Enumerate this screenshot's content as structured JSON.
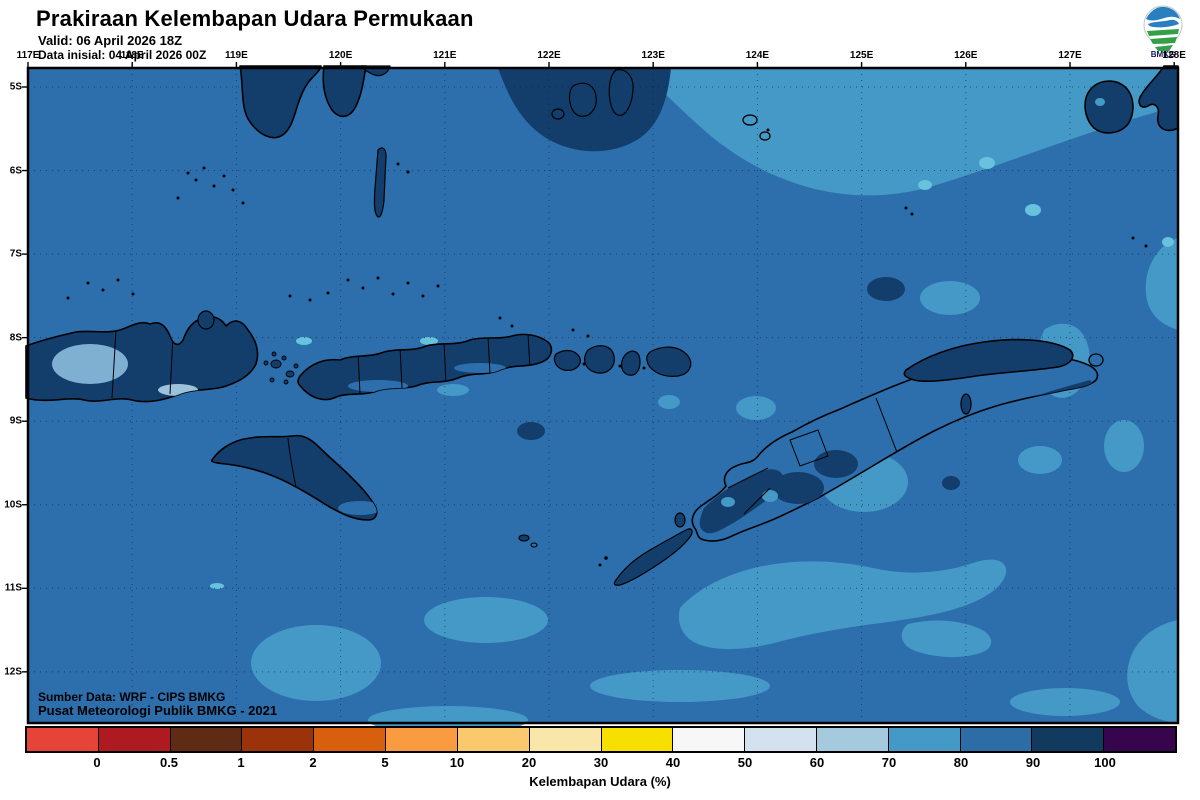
{
  "header": {
    "title": "Prakiraan Kelembapan Udara Permukaan",
    "valid": "Valid: 06 April 2026 18Z",
    "initial": "Data inisial: 04 April 2026 00Z"
  },
  "logo": {
    "label": "BMKG"
  },
  "axes": {
    "lon_labels": [
      "117E",
      "118E",
      "119E",
      "120E",
      "121E",
      "122E",
      "123E",
      "124E",
      "125E",
      "126E",
      "127E",
      "128E"
    ],
    "lat_labels": [
      "5S",
      "6S",
      "7S",
      "8S",
      "9S",
      "10S",
      "11S",
      "12S"
    ]
  },
  "credits": {
    "line1": "Sumber Data: WRF - CIPS BMKG",
    "line2": "Pusat Meteorologi Publik BMKG -  2021"
  },
  "legend": {
    "caption": "Kelembapan Udara (%)",
    "tick_labels": [
      "0",
      "0.5",
      "1",
      "2",
      "5",
      "10",
      "20",
      "30",
      "40",
      "50",
      "60",
      "70",
      "80",
      "90",
      "100"
    ],
    "colors": [
      "#e64438",
      "#ad1a22",
      "#5f2b15",
      "#9a330a",
      "#d85f0e",
      "#f99b40",
      "#fac96e",
      "#f9e6a9",
      "#f7df00",
      "#f7f7f7",
      "#d3e2ee",
      "#a5cade",
      "#4499c7",
      "#2d6da5",
      "#12395e",
      "#36054e"
    ]
  },
  "palette": {
    "ocean": "#2d6fad",
    "dark": "#133e6b",
    "light": "#4499c7",
    "pale": "#9dc3da",
    "cyan": "#66c2dd",
    "coast": "#000000",
    "land_mid": "#7fb0d2"
  }
}
